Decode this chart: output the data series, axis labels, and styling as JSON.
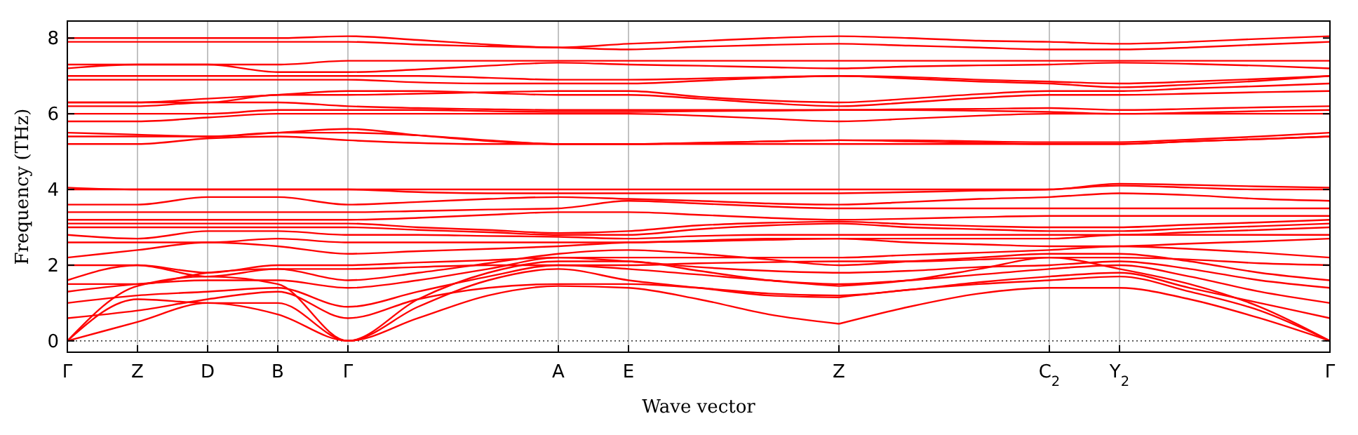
{
  "chart_data": {
    "type": "line",
    "xlabel": "Wave vector",
    "ylabel": "Frequency (THz)",
    "categories": [
      "Γ",
      "Z",
      "D",
      "B",
      "Γ",
      null,
      null,
      "A",
      "E",
      null,
      null,
      "Z",
      null,
      null,
      "C$_{2}$",
      "Y$_{2}$",
      null,
      null,
      "Γ"
    ],
    "ylim": [
      -0.3,
      8.45
    ],
    "yticks": [
      0,
      2,
      4,
      6,
      8
    ],
    "grid": "x",
    "marker": "none",
    "line_style": "solid",
    "ref_lines": [
      {
        "axis": "y",
        "value": 0,
        "color": "#000000",
        "line_style": "dotted"
      }
    ],
    "series": [
      {
        "color": "#ff0000",
        "values": [
          0,
          0.5,
          1.0,
          0.7,
          0,
          0.6,
          1.2,
          1.45,
          1.4,
          1.1,
          0.7,
          0.45,
          null,
          null,
          null,
          null,
          null,
          null,
          null
        ]
      },
      {
        "color": "#ff0000",
        "values": [
          null,
          null,
          null,
          null,
          null,
          null,
          null,
          null,
          null,
          null,
          null,
          0.45,
          0.9,
          1.25,
          1.4,
          1.4,
          1.1,
          0.6,
          0
        ]
      },
      {
        "color": "#ff0000",
        "values": [
          0,
          1.1,
          1.0,
          1.0,
          0,
          0.9,
          1.6,
          1.9,
          1.6,
          1.4,
          1.2,
          1.15,
          null,
          null,
          null,
          null,
          null,
          null,
          null
        ]
      },
      {
        "color": "#ff0000",
        "values": [
          null,
          null,
          null,
          null,
          null,
          null,
          null,
          null,
          null,
          null,
          null,
          1.15,
          1.35,
          1.5,
          1.6,
          1.7,
          1.3,
          0.8,
          0
        ]
      },
      {
        "color": "#ff0000",
        "values": [
          0,
          1.45,
          1.7,
          1.5,
          0,
          1.1,
          1.8,
          2.1,
          2.1,
          1.85,
          1.6,
          1.45,
          null,
          null,
          null,
          null,
          null,
          null,
          null
        ]
      },
      {
        "color": "#ff0000",
        "values": [
          null,
          null,
          null,
          null,
          null,
          null,
          null,
          null,
          null,
          null,
          null,
          1.45,
          1.6,
          1.9,
          2.2,
          1.9,
          1.5,
          0.9,
          0
        ]
      },
      {
        "color": "#ff0000",
        "values": [
          0.6,
          0.8,
          1.1,
          1.3,
          0.6,
          1.1,
          1.4,
          1.5,
          1.5,
          1.4,
          1.25,
          1.2,
          1.35,
          1.55,
          1.7,
          1.8,
          1.4,
          1.0,
          0.6
        ]
      },
      {
        "color": "#ff0000",
        "values": [
          1.0,
          1.2,
          1.3,
          1.4,
          0.9,
          1.3,
          1.7,
          2.0,
          1.9,
          1.75,
          1.6,
          1.5,
          1.6,
          1.75,
          1.9,
          2.0,
          1.7,
          1.3,
          1.0
        ]
      },
      {
        "color": "#ff0000",
        "values": [
          1.3,
          1.5,
          1.6,
          1.6,
          1.4,
          1.6,
          1.9,
          2.2,
          2.1,
          1.95,
          1.85,
          1.8,
          1.85,
          1.95,
          2.0,
          2.1,
          1.9,
          1.6,
          1.4
        ]
      },
      {
        "color": "#ff0000",
        "values": [
          1.5,
          1.5,
          1.8,
          1.9,
          1.6,
          1.8,
          2.05,
          2.3,
          2.4,
          2.3,
          2.15,
          2.0,
          2.1,
          2.2,
          2.3,
          2.3,
          2.1,
          1.8,
          1.6
        ]
      },
      {
        "color": "#ff0000",
        "values": [
          1.6,
          2.0,
          1.7,
          1.9,
          1.9,
          1.95,
          2.0,
          2.0,
          2.0,
          2.05,
          2.08,
          2.1,
          2.1,
          2.15,
          2.2,
          2.2,
          2.15,
          2.05,
          2.0
        ]
      },
      {
        "color": "#ff0000",
        "values": [
          2.0,
          2.0,
          1.8,
          2.0,
          2.0,
          2.07,
          2.13,
          2.2,
          2.2,
          2.2,
          2.2,
          2.2,
          2.27,
          2.33,
          2.4,
          2.5,
          2.43,
          2.33,
          2.2
        ]
      },
      {
        "color": "#ff0000",
        "values": [
          2.2,
          2.4,
          2.6,
          2.5,
          2.3,
          2.37,
          2.43,
          2.5,
          2.6,
          2.63,
          2.67,
          2.7,
          2.6,
          2.55,
          2.5,
          2.5,
          2.57,
          2.63,
          2.7
        ]
      },
      {
        "color": "#ff0000",
        "values": [
          2.6,
          2.6,
          2.6,
          2.7,
          2.6,
          2.6,
          2.6,
          2.6,
          2.6,
          2.65,
          2.7,
          2.7,
          2.7,
          2.7,
          2.7,
          2.8,
          2.8,
          2.8,
          2.8
        ]
      },
      {
        "color": "#ff0000",
        "values": [
          2.8,
          2.7,
          2.9,
          2.9,
          2.8,
          2.8,
          2.77,
          2.75,
          2.7,
          2.77,
          2.8,
          2.8,
          2.8,
          2.8,
          2.8,
          2.8,
          2.87,
          2.93,
          3.0
        ]
      },
      {
        "color": "#ff0000",
        "values": [
          3.0,
          3.0,
          3.0,
          3.0,
          3.0,
          2.93,
          2.87,
          2.8,
          2.8,
          2.95,
          3.05,
          3.1,
          3.0,
          2.95,
          2.9,
          2.9,
          2.97,
          3.03,
          3.1
        ]
      },
      {
        "color": "#ff0000",
        "values": [
          3.1,
          3.1,
          3.1,
          3.1,
          3.1,
          3.0,
          2.93,
          2.85,
          2.9,
          3.05,
          3.12,
          3.15,
          3.08,
          3.03,
          3.0,
          3.0,
          3.07,
          3.13,
          3.2
        ]
      },
      {
        "color": "#ff0000",
        "values": [
          3.2,
          3.2,
          3.2,
          3.2,
          3.2,
          3.25,
          3.33,
          3.4,
          3.4,
          3.33,
          3.25,
          3.2,
          3.23,
          3.27,
          3.3,
          3.3,
          3.3,
          3.3,
          3.3
        ]
      },
      {
        "color": "#ff0000",
        "values": [
          3.4,
          3.4,
          3.4,
          3.4,
          3.4,
          3.43,
          3.47,
          3.5,
          3.7,
          3.63,
          3.55,
          3.5,
          3.5,
          3.5,
          3.5,
          3.5,
          3.5,
          3.5,
          3.5
        ]
      },
      {
        "color": "#ff0000",
        "values": [
          3.6,
          3.6,
          3.8,
          3.8,
          3.6,
          3.67,
          3.75,
          3.8,
          3.75,
          3.7,
          3.63,
          3.6,
          3.67,
          3.75,
          3.8,
          3.9,
          3.85,
          3.75,
          3.7
        ]
      },
      {
        "color": "#ff0000",
        "values": [
          4.0,
          4.0,
          4.0,
          4.0,
          4.0,
          3.93,
          3.9,
          3.9,
          3.9,
          3.9,
          3.9,
          3.9,
          null,
          null,
          null,
          null,
          null,
          null,
          null
        ]
      },
      {
        "color": "#ff0000",
        "values": [
          null,
          null,
          null,
          null,
          null,
          null,
          null,
          null,
          null,
          null,
          null,
          3.9,
          3.93,
          3.97,
          4.0,
          4.1,
          4.05,
          4.0,
          4.0
        ]
      },
      {
        "color": "#ff0000",
        "values": [
          4.05,
          4.0,
          4.0,
          4.0,
          4.0,
          4.0,
          4.0,
          4.0,
          4.0,
          4.0,
          4.0,
          4.0,
          null,
          null,
          null,
          null,
          null,
          null,
          null
        ]
      },
      {
        "color": "#ff0000",
        "values": [
          null,
          null,
          null,
          null,
          null,
          null,
          null,
          null,
          null,
          null,
          null,
          4.0,
          4.0,
          4.0,
          4.0,
          4.15,
          4.12,
          4.08,
          4.05
        ]
      },
      {
        "color": "#ff0000",
        "values": [
          5.2,
          5.2,
          5.35,
          5.4,
          5.3,
          5.23,
          5.2,
          5.2,
          5.2,
          5.2,
          5.2,
          5.2,
          5.2,
          5.2,
          5.2,
          5.2,
          5.27,
          5.33,
          5.4
        ]
      },
      {
        "color": "#ff0000",
        "values": [
          5.4,
          5.4,
          5.4,
          5.5,
          5.6,
          5.43,
          5.28,
          5.2,
          5.2,
          5.23,
          5.27,
          5.3,
          5.27,
          5.23,
          5.2,
          5.2,
          5.27,
          5.33,
          5.4
        ]
      },
      {
        "color": "#ff0000",
        "values": [
          5.5,
          5.45,
          5.4,
          5.5,
          5.5,
          5.43,
          5.3,
          5.2,
          5.2,
          5.23,
          5.27,
          5.3,
          5.3,
          5.27,
          5.25,
          5.25,
          5.32,
          5.4,
          5.5
        ]
      },
      {
        "color": "#ff0000",
        "values": [
          5.8,
          5.8,
          5.9,
          6.0,
          6.0,
          6.0,
          6.0,
          6.0,
          6.0,
          5.95,
          5.87,
          5.8,
          5.87,
          5.95,
          6.0,
          6.0,
          6.0,
          6.0,
          6.0
        ]
      },
      {
        "color": "#ff0000",
        "values": [
          6.0,
          6.0,
          6.0,
          6.1,
          6.1,
          6.1,
          6.07,
          6.05,
          6.05,
          6.07,
          6.08,
          6.1,
          6.1,
          6.08,
          6.05,
          6.0,
          6.03,
          6.07,
          6.1
        ]
      },
      {
        "color": "#ff0000",
        "values": [
          6.2,
          6.2,
          6.3,
          6.3,
          6.2,
          6.15,
          6.12,
          6.1,
          6.1,
          6.1,
          6.1,
          6.1,
          6.12,
          6.13,
          6.15,
          6.1,
          6.13,
          6.17,
          6.2
        ]
      },
      {
        "color": "#ff0000",
        "values": [
          6.3,
          6.3,
          6.4,
          6.5,
          6.6,
          6.6,
          6.55,
          6.5,
          6.5,
          6.4,
          6.28,
          6.2,
          6.3,
          6.42,
          6.5,
          6.5,
          6.53,
          6.57,
          6.6
        ]
      },
      {
        "color": "#ff0000",
        "values": [
          6.3,
          6.3,
          6.3,
          6.5,
          6.5,
          6.53,
          6.57,
          6.6,
          6.6,
          6.45,
          6.35,
          6.3,
          6.4,
          6.52,
          6.6,
          6.6,
          6.67,
          6.73,
          6.8
        ]
      },
      {
        "color": "#ff0000",
        "values": [
          6.9,
          6.9,
          6.9,
          6.9,
          6.9,
          6.83,
          6.8,
          6.8,
          6.8,
          6.87,
          6.95,
          7.0,
          6.93,
          6.85,
          6.8,
          6.7,
          6.77,
          6.87,
          7.0
        ]
      },
      {
        "color": "#ff0000",
        "values": [
          7.0,
          7.0,
          7.0,
          7.0,
          7.0,
          7.0,
          6.95,
          6.9,
          6.9,
          6.93,
          6.97,
          7.0,
          6.97,
          6.9,
          6.85,
          6.8,
          6.85,
          6.92,
          7.0
        ]
      },
      {
        "color": "#ff0000",
        "values": [
          7.2,
          7.3,
          7.3,
          7.1,
          7.1,
          7.17,
          7.27,
          7.35,
          7.3,
          7.27,
          7.23,
          7.2,
          7.25,
          7.28,
          7.3,
          7.35,
          7.32,
          7.27,
          7.2
        ]
      },
      {
        "color": "#ff0000",
        "values": [
          7.3,
          7.3,
          7.3,
          7.3,
          7.4,
          7.4,
          7.4,
          7.4,
          7.4,
          7.4,
          7.4,
          7.4,
          7.4,
          7.4,
          7.4,
          7.4,
          7.4,
          7.4,
          7.4
        ]
      },
      {
        "color": "#ff0000",
        "values": [
          7.9,
          7.9,
          7.9,
          7.9,
          7.9,
          7.83,
          7.78,
          7.75,
          7.7,
          7.77,
          7.82,
          7.85,
          7.8,
          7.75,
          7.7,
          7.7,
          7.75,
          7.83,
          7.9
        ]
      },
      {
        "color": "#ff0000",
        "values": [
          8.0,
          8.0,
          8.0,
          8.0,
          8.05,
          7.95,
          7.83,
          7.75,
          7.85,
          7.92,
          8.0,
          8.05,
          8.0,
          7.93,
          7.9,
          7.85,
          7.9,
          7.98,
          8.05
        ]
      }
    ]
  }
}
